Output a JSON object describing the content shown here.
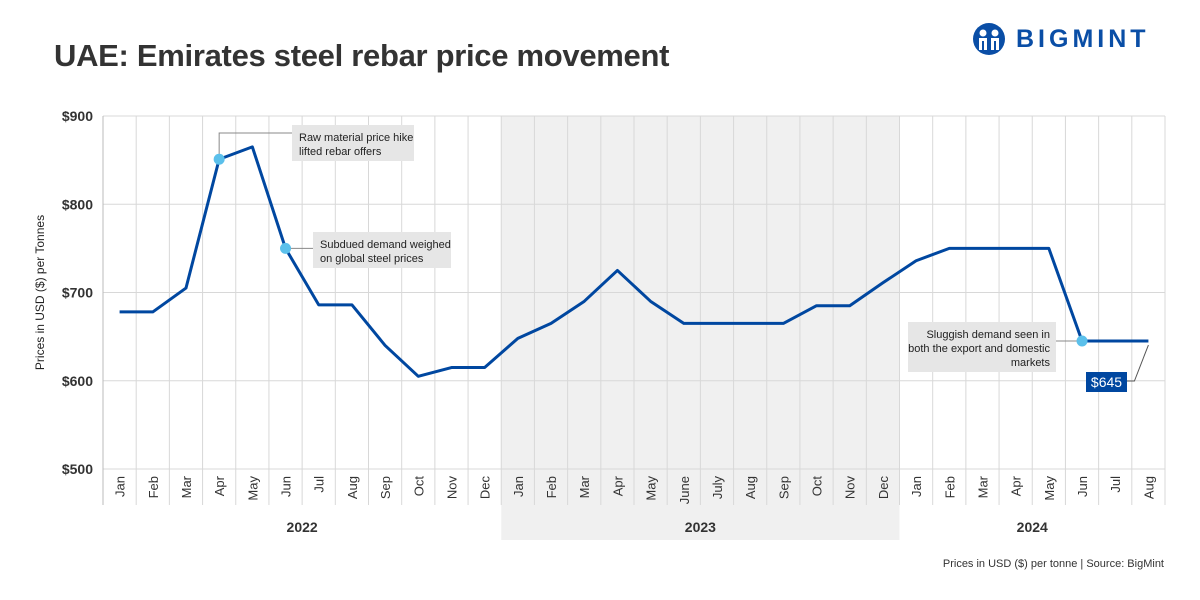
{
  "title": "UAE: Emirates steel rebar price movement",
  "logo": {
    "text": "BIGMINT",
    "color": "#0a4ea6"
  },
  "source": "Prices in USD ($) per tonne | Source: BigMint",
  "chart_data": {
    "type": "line",
    "ylabel": "Prices in USD ($) per Tonnes",
    "ylim": [
      500,
      900
    ],
    "yticks": [
      "$500",
      "$600",
      "$700",
      "$800",
      "$900"
    ],
    "ytick_values": [
      500,
      600,
      700,
      800,
      900
    ],
    "grid": true,
    "line_color": "#0047a0",
    "marker_color": "#5bc0eb",
    "shaded_year_color": "#f0f0f0",
    "years": [
      {
        "label": "2022",
        "months": [
          "Jan",
          "Feb",
          "Mar",
          "Apr",
          "May",
          "Jun",
          "Jul",
          "Aug",
          "Sep",
          "Oct",
          "Nov",
          "Dec"
        ],
        "shaded": false
      },
      {
        "label": "2023",
        "months": [
          "Jan",
          "Feb",
          "Mar",
          "Apr",
          "May",
          "June",
          "July",
          "Aug",
          "Sep",
          "Oct",
          "Nov",
          "Dec"
        ],
        "shaded": true
      },
      {
        "label": "2024",
        "months": [
          "Jan",
          "Feb",
          "Mar",
          "Apr",
          "May",
          "Jun",
          "Jul",
          "Aug"
        ],
        "shaded": false
      }
    ],
    "values": [
      678,
      678,
      705,
      851,
      865,
      750,
      686,
      686,
      640,
      605,
      615,
      615,
      648,
      665,
      690,
      725,
      690,
      665,
      665,
      665,
      665,
      685,
      685,
      711,
      736,
      750,
      750,
      750,
      750,
      645,
      645,
      645
    ],
    "annotations": [
      {
        "index": 3,
        "text": [
          "Raw material price hike",
          "lifted rebar offers"
        ]
      },
      {
        "index": 5,
        "text": [
          "Subdued demand weighed",
          "on global steel prices"
        ]
      },
      {
        "index": 29,
        "text": [
          "Sluggish demand seen in",
          "both the export and domestic",
          "markets"
        ]
      }
    ],
    "last_value_label": "$645"
  }
}
